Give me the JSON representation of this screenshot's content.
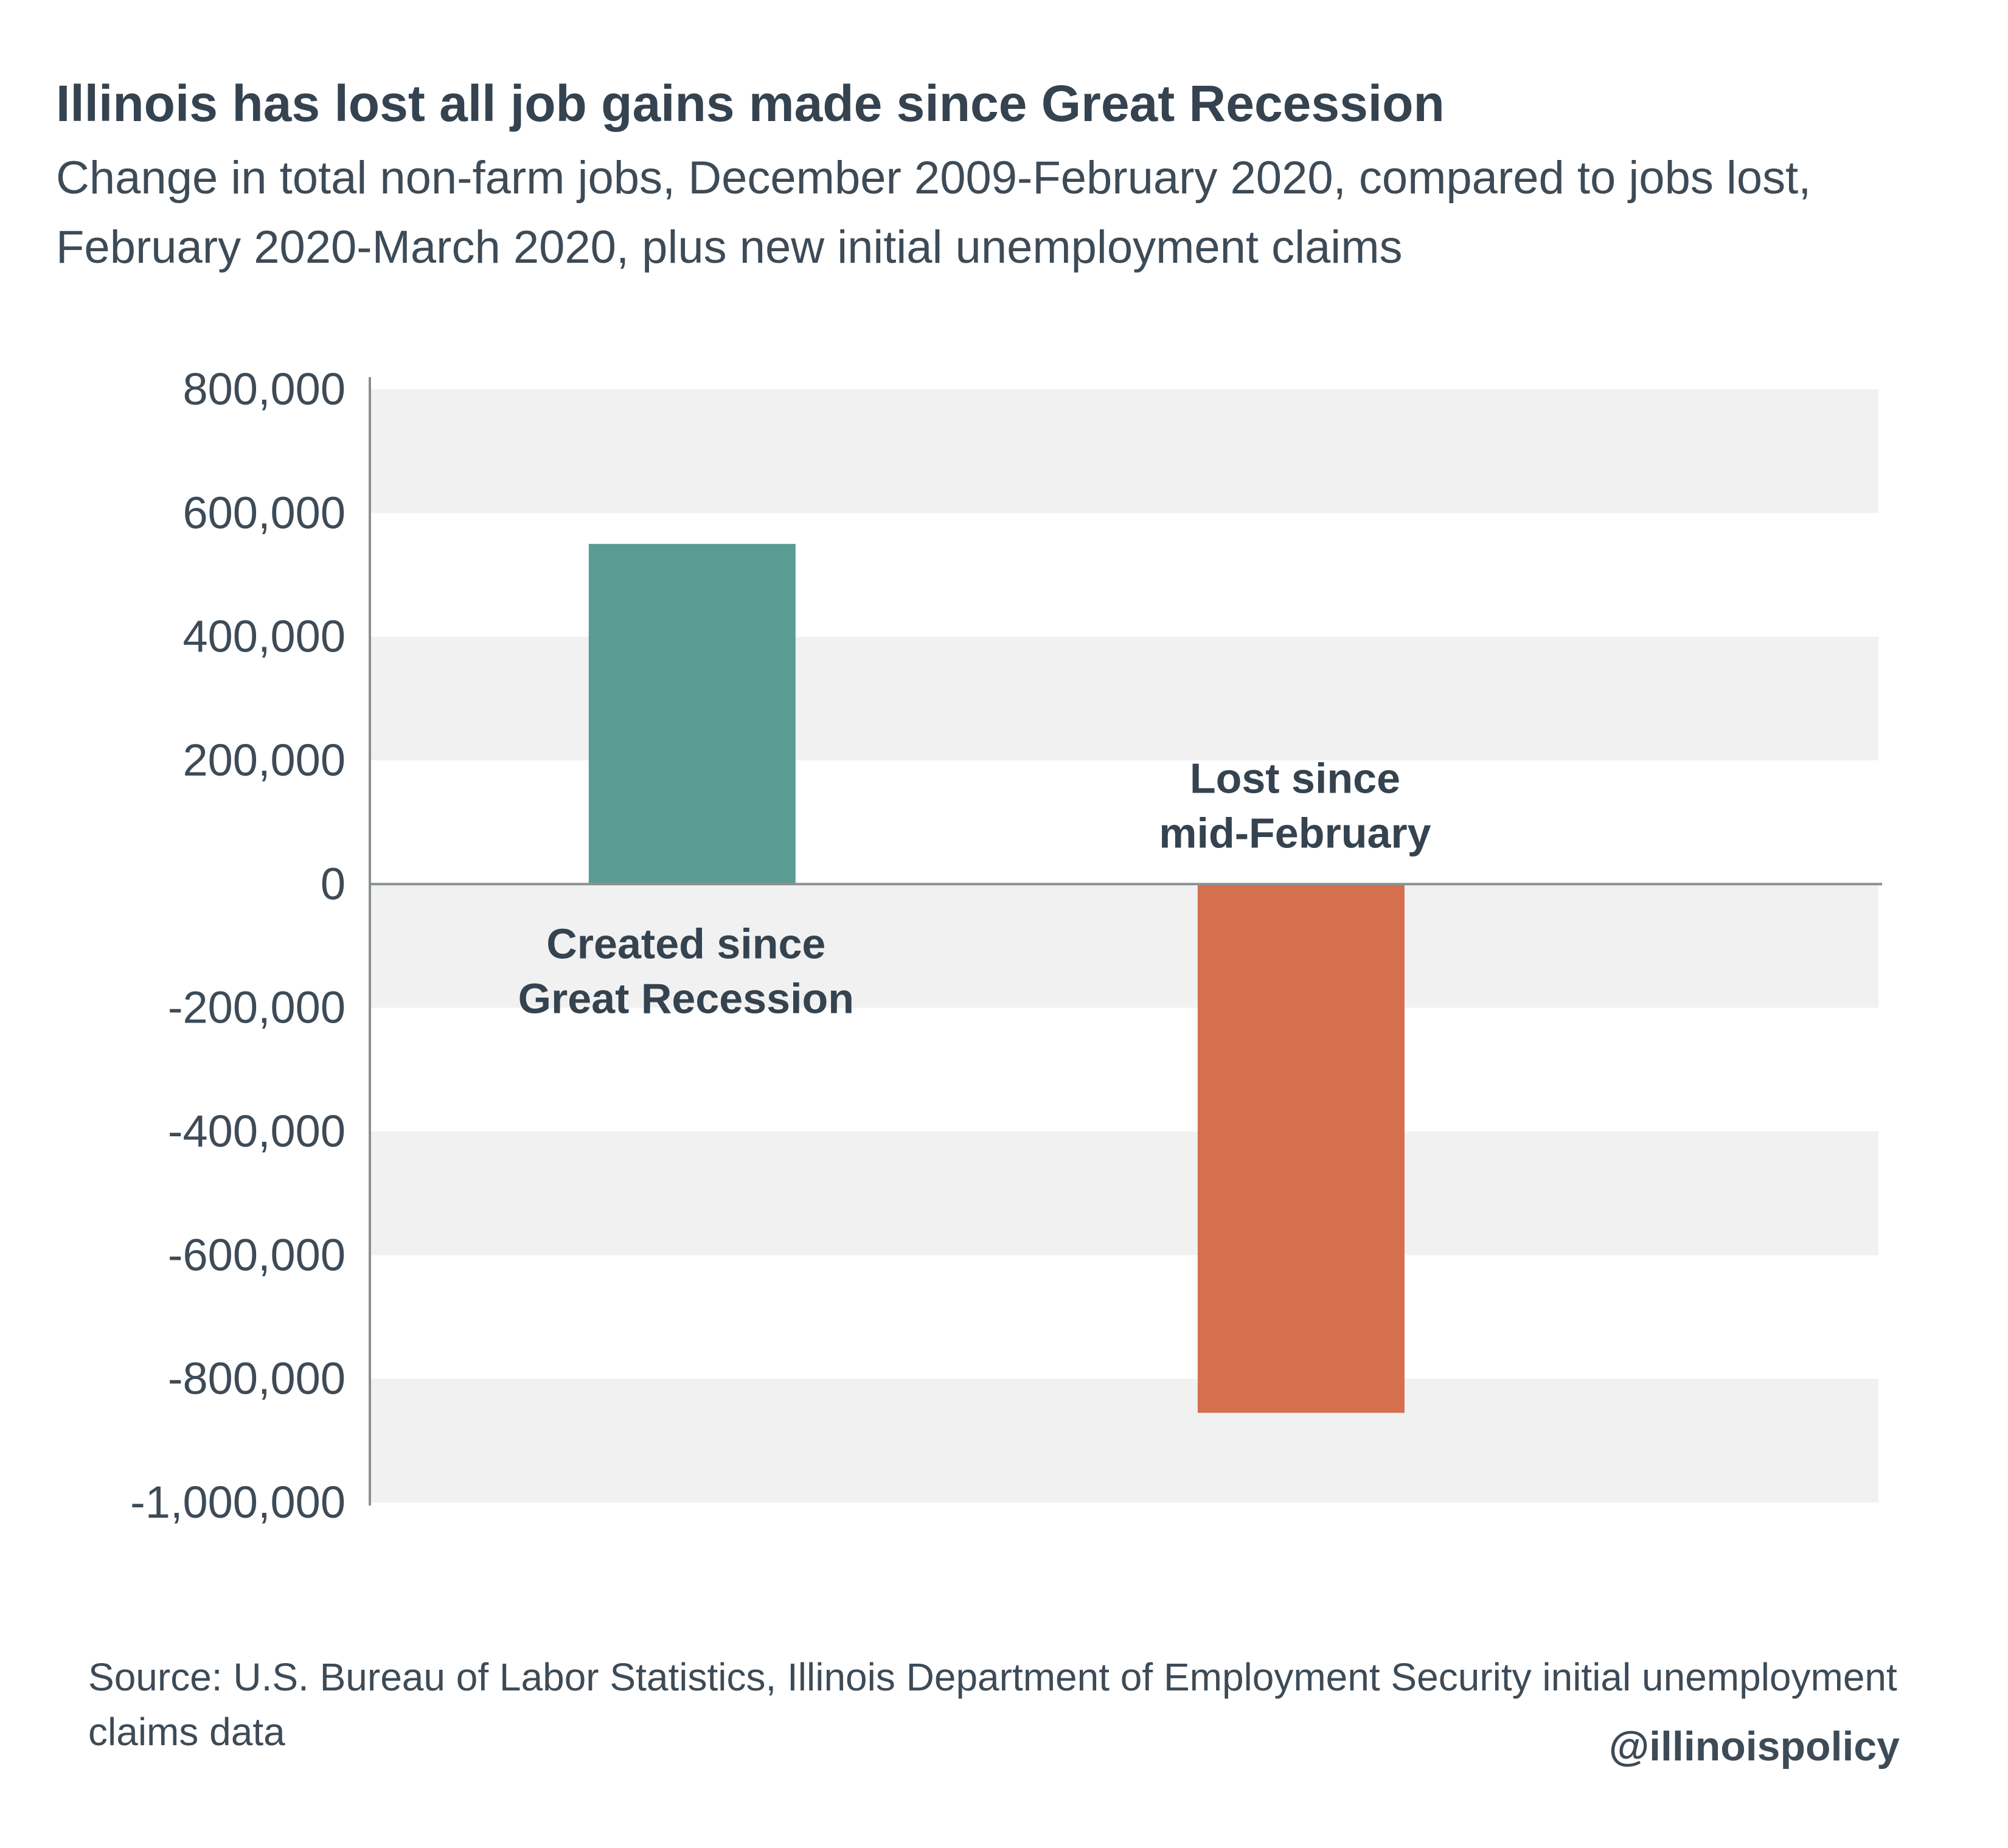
{
  "header": {
    "title": "Illinois has lost all  job gains made since Great Recession",
    "subtitle": "Change in total non-farm jobs, December 2009-February 2020, compared to jobs lost, February 2020-March 2020, plus new initial unemployment claims"
  },
  "chart_data": {
    "type": "bar",
    "categories": [
      "Created since Great Recession",
      "Lost since mid-February"
    ],
    "category_label_lines": [
      [
        "Created since",
        "Great Recession"
      ],
      [
        "Lost since",
        "mid-February"
      ]
    ],
    "values": [
      550000,
      -855000
    ],
    "bar_colors": [
      "#5b9c92",
      "#d4704e"
    ],
    "ylim": [
      -1000000,
      800000
    ],
    "yticks": [
      800000,
      600000,
      400000,
      200000,
      0,
      -200000,
      -400000,
      -600000,
      -800000,
      -1000000
    ],
    "ytick_labels": [
      "800,000",
      "600,000",
      "400,000",
      "200,000",
      "0",
      "-200,000",
      "-400,000",
      "-600,000",
      "-800,000",
      "-1,000,000"
    ],
    "band_color": "#f1f1f1",
    "xlabel": "",
    "ylabel": "",
    "legend": "none"
  },
  "footer": {
    "source": "Source: U.S. Bureau of Labor Statistics, Illinois Department of Employment Security initial unemployment claims data",
    "handle": "@illinoispolicy"
  }
}
